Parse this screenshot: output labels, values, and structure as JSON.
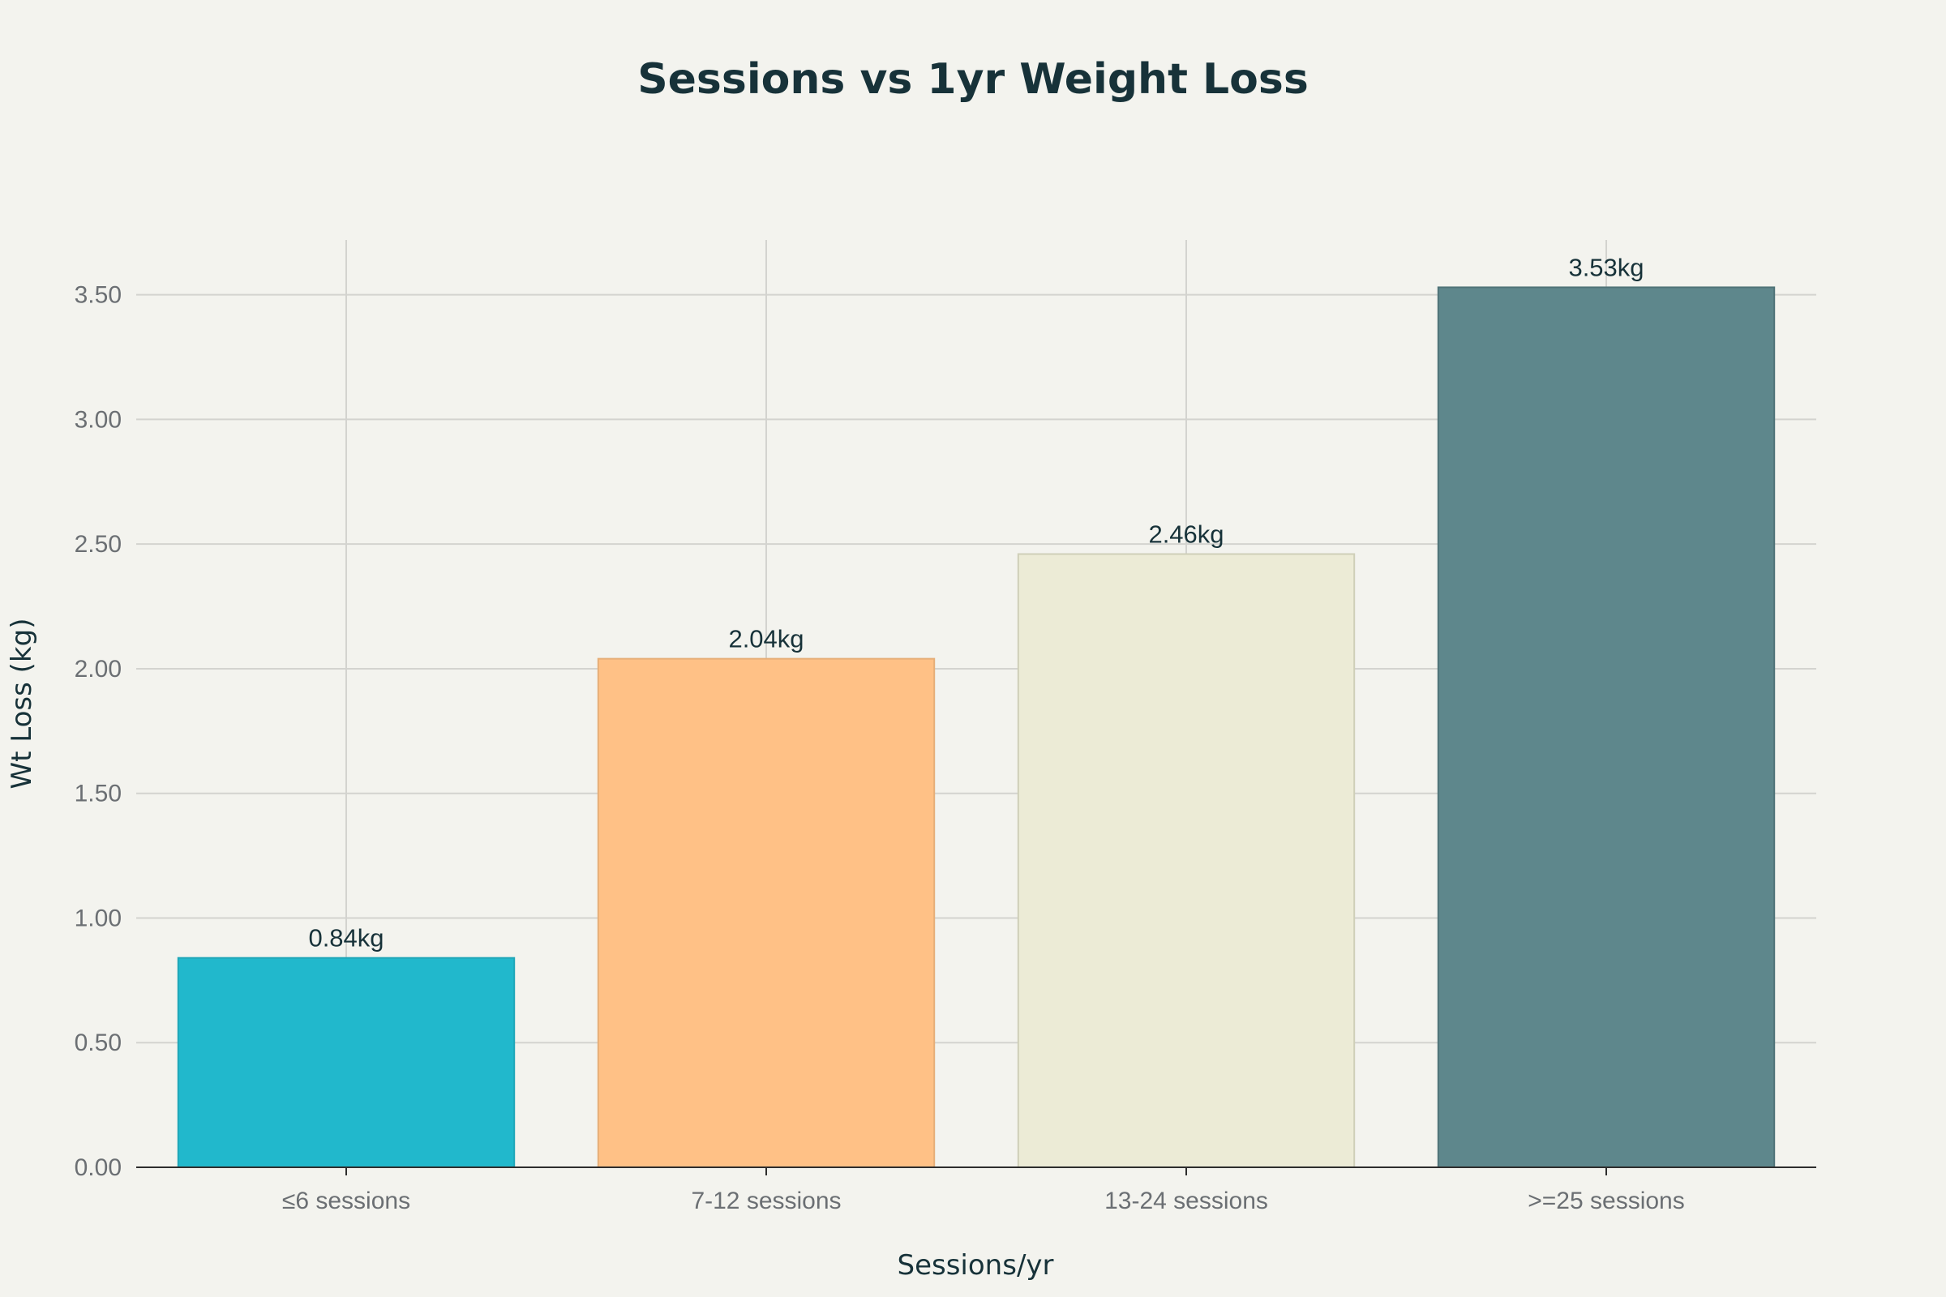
{
  "chart_data": {
    "type": "bar",
    "title": "Sessions vs 1yr Weight Loss",
    "xlabel": "Sessions/yr",
    "ylabel": "Wt Loss (kg)",
    "categories": [
      "≤6 sessions",
      "7-12 sessions",
      "13-24 sessions",
      ">=25 sessions"
    ],
    "values": [
      0.84,
      2.04,
      2.46,
      3.53
    ],
    "data_labels": [
      "0.84kg",
      "2.04kg",
      "2.46kg",
      "3.53kg"
    ],
    "colors": [
      "#21b8cc",
      "#ffc186",
      "#ecebd6",
      "#5e878c"
    ],
    "border_colors": [
      "#1fa6b8",
      "#e6ae78",
      "#cfcfb8",
      "#4f7378"
    ],
    "ylim": [
      0,
      3.72
    ],
    "yticks": [
      0,
      0.5,
      1.0,
      1.5,
      2.0,
      2.5,
      3.0,
      3.5
    ],
    "ytick_labels": [
      "0.00",
      "0.50",
      "1.00",
      "1.50",
      "2.00",
      "2.50",
      "3.00",
      "3.50"
    ],
    "grid": true,
    "legend": "none"
  }
}
